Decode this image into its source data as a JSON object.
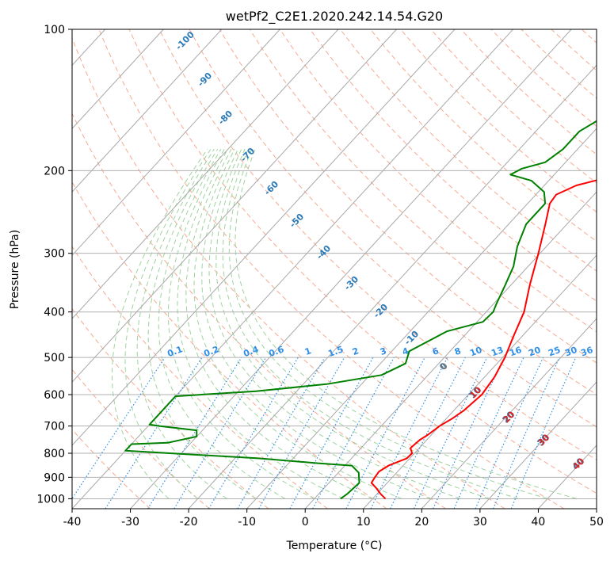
{
  "chart_data": {
    "type": "line",
    "title": "wetPf2_C2E1.2020.242.14.54.G20",
    "xlabel": "Temperature (°C)",
    "ylabel": "Pressure (hPa)",
    "xlim": [
      -40,
      50
    ],
    "ylim": [
      1050,
      100
    ],
    "y_scale": "log",
    "grid": true,
    "x_ticks": [
      "-40",
      "-30",
      "-20",
      "-10",
      "0",
      "10",
      "20",
      "30",
      "40",
      "50"
    ],
    "y_ticks": [
      "100",
      "200",
      "300",
      "400",
      "500",
      "600",
      "700",
      "800",
      "900",
      "1000"
    ],
    "series": [
      {
        "color": "#ff0000",
        "points": [
          [
            12.2,
            1000
          ],
          [
            10.5,
            975
          ],
          [
            9,
            950
          ],
          [
            7.3,
            925
          ],
          [
            7,
            900
          ],
          [
            6.8,
            875
          ],
          [
            7.5,
            850
          ],
          [
            9.5,
            820
          ],
          [
            9.6,
            800
          ],
          [
            8.5,
            780
          ],
          [
            8.8,
            750
          ],
          [
            9.4,
            730
          ],
          [
            10,
            700
          ],
          [
            11,
            675
          ],
          [
            11.7,
            650
          ],
          [
            12.3,
            600
          ],
          [
            11.7,
            550
          ],
          [
            10.4,
            500
          ],
          [
            8.5,
            450
          ],
          [
            6.5,
            400
          ],
          [
            3.2,
            350
          ],
          [
            -0.3,
            300
          ],
          [
            -3.7,
            260
          ],
          [
            -6.2,
            235
          ],
          [
            -6.5,
            225
          ],
          [
            -4.5,
            215
          ],
          [
            0.5,
            205
          ],
          [
            2.5,
            200
          ],
          [
            5,
            185
          ],
          [
            8.5,
            165
          ],
          [
            12,
            145
          ],
          [
            14.5,
            125
          ],
          [
            17.4,
            115
          ],
          [
            17.6,
            110
          ],
          [
            18,
            106
          ],
          [
            19.5,
            100
          ]
        ]
      },
      {
        "color": "#008000",
        "points": [
          [
            4.5,
            1000
          ],
          [
            4.9,
            975
          ],
          [
            5.2,
            925
          ],
          [
            3.5,
            880
          ],
          [
            1.2,
            850
          ],
          [
            -5,
            840
          ],
          [
            -16,
            820
          ],
          [
            -32,
            800
          ],
          [
            -40,
            790
          ],
          [
            -40,
            765
          ],
          [
            -34,
            760
          ],
          [
            -30,
            737
          ],
          [
            -31,
            715
          ],
          [
            -38,
            700
          ],
          [
            -40,
            695
          ],
          [
            -40,
            605
          ],
          [
            -27,
            590
          ],
          [
            -16,
            570
          ],
          [
            -8,
            545
          ],
          [
            -5.7,
            515
          ],
          [
            -7,
            485
          ],
          [
            -3.7,
            440
          ],
          [
            1,
            420
          ],
          [
            1.2,
            400
          ],
          [
            0.5,
            385
          ],
          [
            -1,
            350
          ],
          [
            -2.5,
            320
          ],
          [
            -5,
            290
          ],
          [
            -7,
            260
          ],
          [
            -7,
            235
          ],
          [
            -9,
            222
          ],
          [
            -13,
            210
          ],
          [
            -17.5,
            204
          ],
          [
            -16.5,
            198
          ],
          [
            -13.5,
            192
          ],
          [
            -12.5,
            180
          ],
          [
            -12.5,
            165
          ],
          [
            -10,
            150
          ],
          [
            -6,
            140
          ],
          [
            -2,
            128
          ],
          [
            0,
            115
          ],
          [
            1.5,
            106
          ],
          [
            2,
            100
          ]
        ]
      }
    ],
    "dry_adiabat_labels": [
      "-100",
      "-90",
      "-80",
      "-70",
      "-60",
      "-50",
      "-40",
      "-30",
      "-20",
      "-10",
      "0",
      "10",
      "20",
      "30",
      "40"
    ],
    "mixing_ratio_labels": [
      "0.1",
      "0.2",
      "0.4",
      "0.6",
      "1",
      "1.5",
      "2",
      "3",
      "4",
      "6",
      "8",
      "10",
      "13",
      "16",
      "20",
      "25",
      "30",
      "36"
    ],
    "moist_adiabat_labels": [
      "0",
      "10",
      "20",
      "30",
      "40"
    ]
  }
}
